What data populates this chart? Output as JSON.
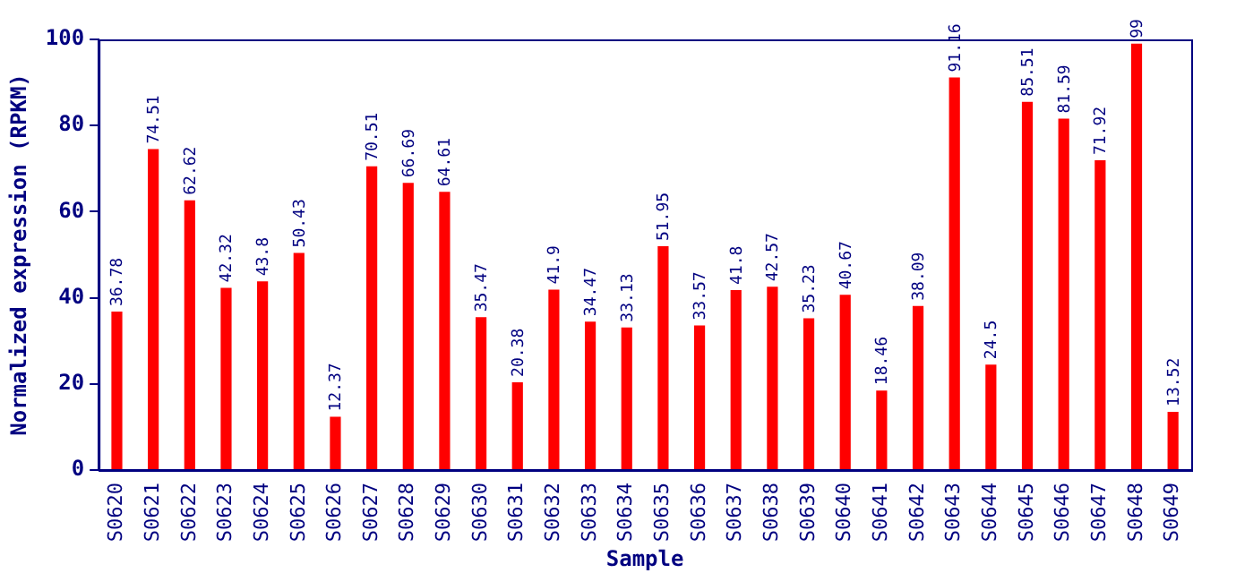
{
  "chart_data": {
    "type": "bar",
    "xlabel": "Sample",
    "ylabel": "Normalized expression (RPKM)",
    "categories": [
      "S0620",
      "S0621",
      "S0622",
      "S0623",
      "S0624",
      "S0625",
      "S0626",
      "S0627",
      "S0628",
      "S0629",
      "S0630",
      "S0631",
      "S0632",
      "S0633",
      "S0634",
      "S0635",
      "S0636",
      "S0637",
      "S0638",
      "S0639",
      "S0640",
      "S0641",
      "S0642",
      "S0643",
      "S0644",
      "S0645",
      "S0646",
      "S0647",
      "S0648",
      "S0649"
    ],
    "values": [
      36.78,
      74.51,
      62.62,
      42.32,
      43.8,
      50.43,
      12.37,
      70.51,
      66.69,
      64.61,
      35.47,
      20.38,
      41.9,
      34.47,
      33.13,
      51.95,
      33.57,
      41.8,
      42.57,
      35.23,
      40.67,
      18.46,
      38.09,
      91.16,
      24.5,
      85.51,
      81.59,
      71.92,
      99,
      13.52
    ],
    "color": "#ff0000",
    "ylim": [
      0,
      100
    ],
    "yticks": [
      0,
      20,
      40,
      60,
      80,
      100
    ],
    "grid": false,
    "legend": false,
    "data_labels": true
  }
}
